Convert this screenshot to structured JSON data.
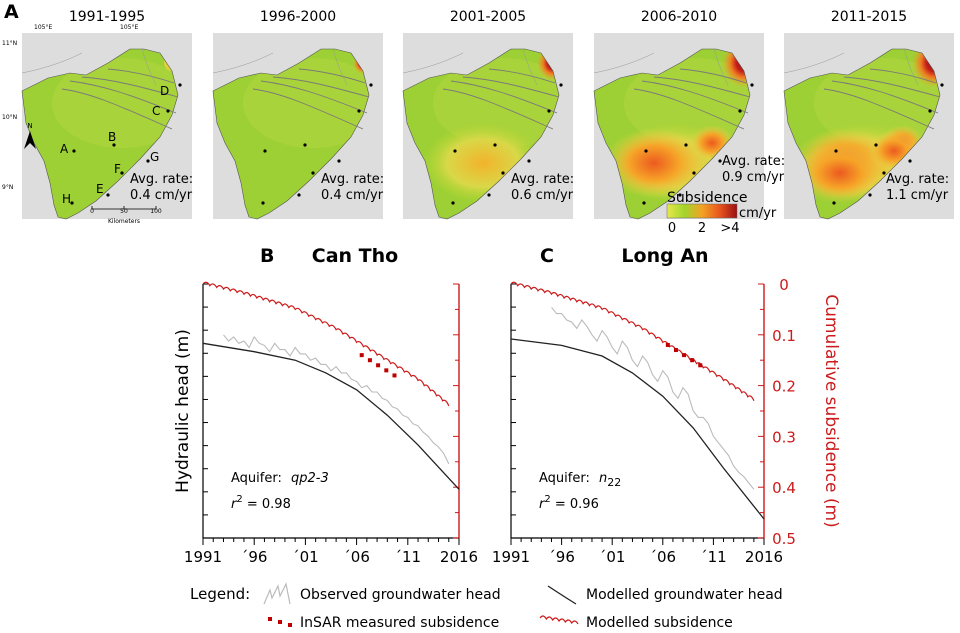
{
  "panel_a": {
    "label": "A",
    "maps": [
      {
        "period": "1991-1995",
        "rate_line1": "Avg. rate:",
        "rate_line2": "0.4 cm/yr",
        "rate": 0.4
      },
      {
        "period": "1996-2000",
        "rate_line1": "Avg. rate:",
        "rate_line2": "0.4 cm/yr",
        "rate": 0.4
      },
      {
        "period": "2001-2005",
        "rate_line1": "Avg. rate:",
        "rate_line2": "0.6 cm/yr",
        "rate": 0.6
      },
      {
        "period": "2006-2010",
        "rate_line1": "Avg. rate:",
        "rate_line2": "0.9 cm/yr",
        "rate": 0.9
      },
      {
        "period": "2011-2015",
        "rate_line1": "Avg. rate:",
        "rate_line2": "1.1 cm/yr",
        "rate": 1.1
      }
    ],
    "site_labels": [
      "A",
      "B",
      "C",
      "D",
      "E",
      "F",
      "G",
      "H"
    ],
    "lon_labels": [
      "105°E",
      "105°E"
    ],
    "lat_labels": [
      "11°N",
      "10°N",
      "9°N"
    ],
    "north": "N",
    "scale_ticks": [
      "0",
      "50",
      "100"
    ],
    "scale_unit": "Kilometers",
    "colorbar": {
      "title": "Subsidence",
      "unit": "cm/yr",
      "ticks": [
        "0",
        "2",
        ">4"
      ],
      "colors": [
        "#e8e84a",
        "#a3d42c",
        "#f2a324",
        "#e8561e",
        "#9b0f14"
      ]
    }
  },
  "chart_data": [
    {
      "type": "line",
      "panel": "B",
      "title": "Can Tho",
      "ylabel": "Hydraulic head (m)",
      "y2label": "",
      "x_ticks": [
        "1991",
        "´96",
        "´01",
        "´06",
        "´11",
        "2016"
      ],
      "xlim": [
        1991,
        2016
      ],
      "y2lim": [
        0,
        0.5
      ],
      "annotation_prefix": "Aquifer: ",
      "aquifer": "qp2-3",
      "r2_label": "r",
      "r2_sup": "2",
      "r2_value": " = 0.98",
      "series": [
        {
          "x": [
            1993,
            1994,
            1995,
            1996,
            1997,
            1998,
            1999,
            2000,
            2001,
            2002,
            2003,
            2004,
            2005,
            2006,
            2007,
            2008,
            2009,
            2010,
            2011,
            2012,
            2013,
            2014,
            2015
          ],
          "y": [
            0.24,
            0.25,
            0.27,
            0.25,
            0.29,
            0.28,
            0.31,
            0.3,
            0.33,
            0.35,
            0.38,
            0.39,
            0.42,
            0.46,
            0.48,
            0.51,
            0.55,
            0.59,
            0.63,
            0.67,
            0.72,
            0.77,
            0.85
          ]
        },
        {
          "x": [
            1991,
            1996,
            2000,
            2003,
            2006,
            2009,
            2012,
            2016
          ],
          "y": [
            0.28,
            0.32,
            0.36,
            0.42,
            0.5,
            0.62,
            0.76,
            0.97
          ]
        },
        {
          "x": [
            2006.5,
            2007.3,
            2008.1,
            2008.9,
            2009.7
          ],
          "y": [
            0.14,
            0.15,
            0.16,
            0.17,
            0.18
          ]
        },
        {
          "x": [
            1991,
            1995,
            2000,
            2004,
            2008,
            2012,
            2015
          ],
          "y": [
            0.0,
            0.02,
            0.05,
            0.09,
            0.14,
            0.19,
            0.24
          ]
        }
      ]
    },
    {
      "type": "line",
      "panel": "C",
      "title": "Long An",
      "ylabel": "",
      "y2label": "Cumulative subsidence (m)",
      "x_ticks": [
        "1991",
        "´96",
        "´01",
        "´06",
        "´11",
        "2016"
      ],
      "xlim": [
        1991,
        2016
      ],
      "y2lim": [
        0,
        0.5
      ],
      "y2_ticks": [
        "0",
        "0.1",
        "0.2",
        "0.3",
        "0.4",
        "0.5"
      ],
      "annotation_prefix": "Aquifer: ",
      "aquifer": "n",
      "aquifer_sub": "22",
      "r2_label": "r",
      "r2_sup": "2",
      "r2_value": " = 0.96",
      "series": [
        {
          "x": [
            1995,
            1996,
            1997,
            1998,
            1999,
            2000,
            2001,
            2002,
            2003,
            2004,
            2005,
            2006,
            2007,
            2008,
            2009,
            2010,
            2011,
            2012,
            2013,
            2014,
            2015
          ],
          "y": [
            0.11,
            0.14,
            0.18,
            0.17,
            0.24,
            0.22,
            0.3,
            0.27,
            0.36,
            0.34,
            0.43,
            0.41,
            0.51,
            0.49,
            0.6,
            0.63,
            0.72,
            0.78,
            0.86,
            0.91,
            0.97
          ]
        },
        {
          "x": [
            1991,
            1996,
            2000,
            2003,
            2006,
            2009,
            2012,
            2016
          ],
          "y": [
            0.26,
            0.29,
            0.34,
            0.42,
            0.53,
            0.68,
            0.87,
            1.11
          ]
        },
        {
          "x": [
            2006.5,
            2007.3,
            2008.1,
            2008.9,
            2009.7
          ],
          "y": [
            0.12,
            0.13,
            0.14,
            0.15,
            0.16
          ]
        },
        {
          "x": [
            1991,
            1995,
            2000,
            2004,
            2008,
            2012,
            2015
          ],
          "y": [
            0.0,
            0.02,
            0.05,
            0.09,
            0.14,
            0.19,
            0.23
          ]
        }
      ]
    }
  ],
  "legend": {
    "title": "Legend:",
    "items": [
      "Observed groundwater head",
      "Modelled groundwater head",
      "InSAR measured subsidence",
      "Modelled subsidence"
    ],
    "colors": {
      "observed": "#bbbbbb",
      "modelled_head": "#222222",
      "insar": "#c00000",
      "modelled_sub": "#cc1a1a"
    }
  }
}
